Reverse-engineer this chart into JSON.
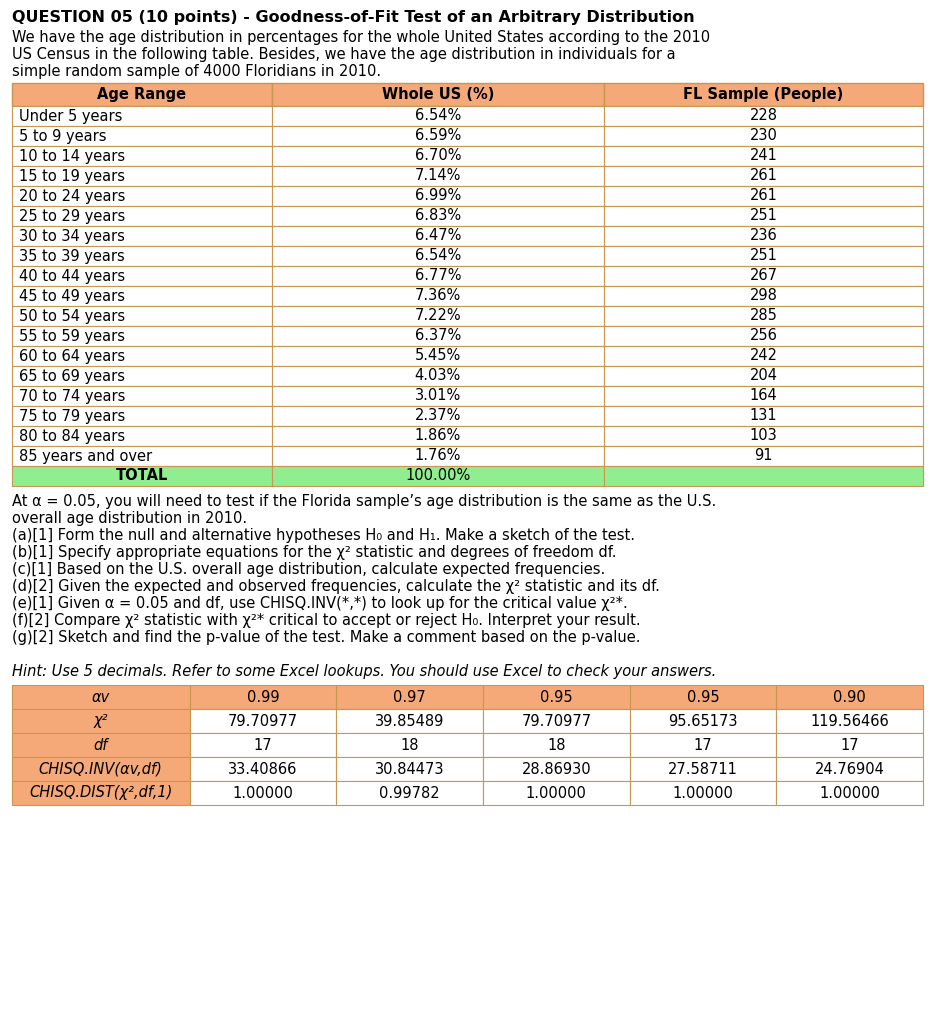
{
  "title": "QUESTION 05 (10 points) - Goodness-of-Fit Test of an Arbitrary Distribution",
  "intro_lines": [
    "We have the age distribution in percentages for the whole United States according to the 2010",
    "US Census in the following table. Besides, we have the age distribution in individuals for a",
    "simple random sample of 4000 Floridians in 2010."
  ],
  "table1_headers": [
    "Age Range",
    "Whole US (%)",
    "FL Sample (People)"
  ],
  "table1_rows": [
    [
      "Under 5 years",
      "6.54%",
      "228"
    ],
    [
      "5 to 9 years",
      "6.59%",
      "230"
    ],
    [
      "10 to 14 years",
      "6.70%",
      "241"
    ],
    [
      "15 to 19 years",
      "7.14%",
      "261"
    ],
    [
      "20 to 24 years",
      "6.99%",
      "261"
    ],
    [
      "25 to 29 years",
      "6.83%",
      "251"
    ],
    [
      "30 to 34 years",
      "6.47%",
      "236"
    ],
    [
      "35 to 39 years",
      "6.54%",
      "251"
    ],
    [
      "40 to 44 years",
      "6.77%",
      "267"
    ],
    [
      "45 to 49 years",
      "7.36%",
      "298"
    ],
    [
      "50 to 54 years",
      "7.22%",
      "285"
    ],
    [
      "55 to 59 years",
      "6.37%",
      "256"
    ],
    [
      "60 to 64 years",
      "5.45%",
      "242"
    ],
    [
      "65 to 69 years",
      "4.03%",
      "204"
    ],
    [
      "70 to 74 years",
      "3.01%",
      "164"
    ],
    [
      "75 to 79 years",
      "2.37%",
      "131"
    ],
    [
      "80 to 84 years",
      "1.86%",
      "103"
    ],
    [
      "85 years and over",
      "1.76%",
      "91"
    ]
  ],
  "table1_total_row": [
    "TOTAL",
    "100.00%",
    ""
  ],
  "header_bg": "#F5A878",
  "total_bg": "#90EE90",
  "body_lines": [
    "At α = 0.05, you will need to test if the Florida sample’s age distribution is the same as the U.S.",
    "overall age distribution in 2010.",
    "(a)[1] Form the null and alternative hypotheses H₀ and H₁. Make a sketch of the test.",
    "(b)[1] Specify appropriate equations for the χ² statistic and degrees of freedom df.",
    "(c)[1] Based on the U.S. overall age distribution, calculate expected frequencies.",
    "(d)[2] Given the expected and observed frequencies, calculate the χ² statistic and its df.",
    "(e)[1] Given α = 0.05 and df, use CHISQ.INV(*,*) to look up for the critical value χ²*.",
    "(f)[2] Compare χ² statistic with χ²* critical to accept or reject H₀. Interpret your result.",
    "(g)[2] Sketch and find the p-value of the test. Make a comment based on the p-value."
  ],
  "hint_text": "Hint: Use 5 decimals. Refer to some Excel lookups. You should use Excel to check your answers.",
  "table2_headers": [
    "αv",
    "0.99",
    "0.97",
    "0.95",
    "0.95",
    "0.90"
  ],
  "table2_row0": [
    "χ²",
    "79.70977",
    "39.85489",
    "79.70977",
    "95.65173",
    "119.56466"
  ],
  "table2_row1": [
    "df",
    "17",
    "18",
    "18",
    "17",
    "17"
  ],
  "table2_row2": [
    "CHISQ.INV(αv,df)",
    "33.40866",
    "30.84473",
    "28.86930",
    "27.58711",
    "24.76904"
  ],
  "table2_row3": [
    "CHISQ.DIST(χ²,df,1)",
    "1.00000",
    "0.99782",
    "1.00000",
    "1.00000",
    "1.00000"
  ],
  "bg_color": "#FFFFFF",
  "border_color": "#C8964E",
  "text_color": "#000000"
}
